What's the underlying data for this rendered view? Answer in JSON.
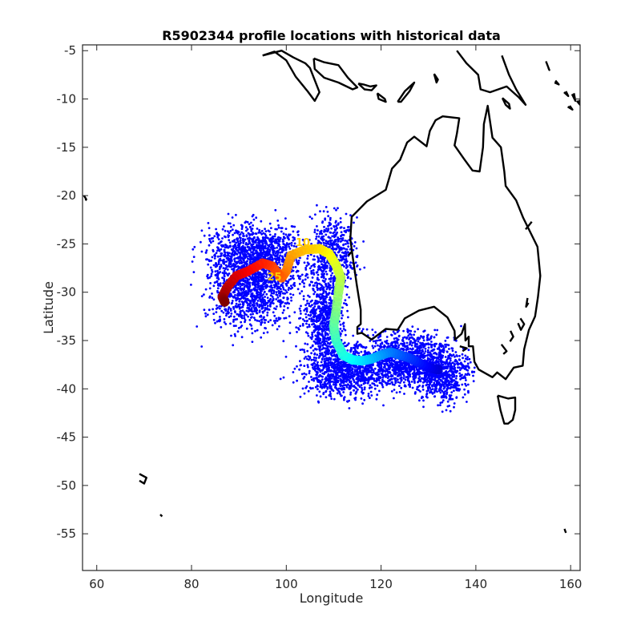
{
  "chart_data": {
    "type": "scatter",
    "title": "R5902344 profile locations with historical data",
    "xlabel": "Longitude",
    "ylabel": "Latitude",
    "xlim": [
      57,
      162
    ],
    "ylim": [
      -58.8,
      -4.4
    ],
    "xticks": [
      60,
      80,
      100,
      120,
      140,
      160
    ],
    "yticks": [
      -5,
      -10,
      -15,
      -20,
      -25,
      -30,
      -35,
      -40,
      -45,
      -50,
      -55
    ],
    "grid": false,
    "colormap": "jet",
    "colors": {
      "historical": "#0000ff",
      "coastline": "#000000",
      "axis": "#262626"
    },
    "historical_clusters": [
      {
        "lon": 94,
        "lat": -25.8,
        "spread_lon": 7.5,
        "spread_lat": 2.0,
        "n": 900
      },
      {
        "lon": 93,
        "lat": -29.5,
        "spread_lon": 6.5,
        "spread_lat": 3.0,
        "n": 1200
      },
      {
        "lon": 110,
        "lat": -26.0,
        "spread_lon": 3.5,
        "spread_lat": 2.5,
        "n": 500
      },
      {
        "lon": 108,
        "lat": -32.5,
        "spread_lon": 3.0,
        "spread_lat": 3.0,
        "n": 700
      },
      {
        "lon": 112,
        "lat": -38.0,
        "spread_lon": 6.0,
        "spread_lat": 2.0,
        "n": 1000
      },
      {
        "lon": 125,
        "lat": -37.0,
        "spread_lon": 6.0,
        "spread_lat": 2.0,
        "n": 1100
      },
      {
        "lon": 133,
        "lat": -38.5,
        "spread_lon": 4.0,
        "spread_lat": 2.0,
        "n": 600
      }
    ],
    "profile_track": [
      [
        132.0,
        -38.0
      ],
      [
        130.0,
        -37.8
      ],
      [
        128.0,
        -37.3
      ],
      [
        126.0,
        -36.8
      ],
      [
        124.0,
        -36.5
      ],
      [
        122.0,
        -36.2
      ],
      [
        120.0,
        -36.5
      ],
      [
        118.0,
        -36.9
      ],
      [
        116.0,
        -37.1
      ],
      [
        114.0,
        -37.0
      ],
      [
        112.0,
        -36.5
      ],
      [
        110.5,
        -35.0
      ],
      [
        110.0,
        -33.5
      ],
      [
        110.5,
        -32.0
      ],
      [
        111.0,
        -30.0
      ],
      [
        111.5,
        -28.5
      ],
      [
        110.5,
        -27.2
      ],
      [
        109.0,
        -26.0
      ],
      [
        107.0,
        -25.5
      ],
      [
        104.0,
        -25.6
      ],
      [
        101.0,
        -26.2
      ],
      [
        100.0,
        -27.8
      ],
      [
        99.0,
        -28.5
      ],
      [
        97.0,
        -27.3
      ],
      [
        95.0,
        -27.0
      ],
      [
        92.0,
        -27.8
      ],
      [
        89.5,
        -28.3
      ],
      [
        87.5,
        -29.5
      ],
      [
        86.5,
        -30.5
      ],
      [
        87.0,
        -31.0
      ]
    ],
    "track_labels": [
      {
        "text": "10",
        "lon": 103.5,
        "lat": -25.2
      },
      {
        "text": "25",
        "lon": 97.5,
        "lat": -28.8
      }
    ],
    "coastlines": [
      [
        [
          123.5,
          -33.9
        ],
        [
          121,
          -33.8
        ],
        [
          118,
          -34.9
        ],
        [
          115.9,
          -34.2
        ],
        [
          115,
          -34.3
        ],
        [
          115,
          -33.6
        ],
        [
          115.7,
          -33.3
        ],
        [
          115.7,
          -31.8
        ],
        [
          114.9,
          -29.3
        ],
        [
          114,
          -26.3
        ],
        [
          113.5,
          -24.5
        ],
        [
          113.8,
          -22.2
        ],
        [
          114.6,
          -21.8
        ],
        [
          117,
          -20.6
        ],
        [
          121,
          -19.4
        ],
        [
          122.3,
          -17.2
        ],
        [
          124,
          -16.3
        ],
        [
          125.5,
          -14.5
        ],
        [
          127,
          -13.9
        ],
        [
          129.6,
          -14.9
        ],
        [
          130.3,
          -13.3
        ],
        [
          131.5,
          -12.2
        ],
        [
          133,
          -11.8
        ],
        [
          136.5,
          -12
        ],
        [
          136,
          -13.6
        ],
        [
          135.5,
          -14.8
        ],
        [
          137.5,
          -16.2
        ],
        [
          139.3,
          -17.4
        ],
        [
          140.8,
          -17.5
        ],
        [
          141.5,
          -15
        ],
        [
          141.7,
          -12.6
        ],
        [
          142.5,
          -10.7
        ],
        [
          143.5,
          -14
        ],
        [
          145.3,
          -15
        ],
        [
          146,
          -17.5
        ],
        [
          146.3,
          -19
        ],
        [
          148.5,
          -20.5
        ],
        [
          150,
          -22.3
        ],
        [
          153,
          -25.3
        ],
        [
          153.6,
          -28.3
        ],
        [
          153.1,
          -30.5
        ],
        [
          152.5,
          -32.5
        ],
        [
          151.2,
          -33.9
        ],
        [
          150.2,
          -35.9
        ],
        [
          149.9,
          -37.6
        ],
        [
          148,
          -37.8
        ],
        [
          146.3,
          -39
        ],
        [
          144.5,
          -38.3
        ],
        [
          143.5,
          -38.8
        ],
        [
          140.6,
          -38
        ],
        [
          139.7,
          -37.2
        ],
        [
          139.4,
          -35.6
        ],
        [
          138.5,
          -35.6
        ],
        [
          138.5,
          -34.6
        ],
        [
          137.8,
          -35
        ],
        [
          137.7,
          -33.3
        ],
        [
          137,
          -34.3
        ],
        [
          135.6,
          -34.9
        ],
        [
          135.5,
          -34
        ],
        [
          134,
          -32.6
        ],
        [
          131.2,
          -31.5
        ],
        [
          128,
          -31.9
        ],
        [
          125,
          -32.7
        ],
        [
          123.5,
          -33.9
        ]
      ],
      [
        [
          144.6,
          -40.7
        ],
        [
          146.8,
          -41
        ],
        [
          148.3,
          -40.9
        ],
        [
          148.3,
          -42.2
        ],
        [
          147.8,
          -43.2
        ],
        [
          146.8,
          -43.6
        ],
        [
          146,
          -43.6
        ],
        [
          145.2,
          -42.2
        ],
        [
          144.6,
          -40.7
        ]
      ],
      [
        [
          95,
          -5.5
        ],
        [
          97.5,
          -5.1
        ],
        [
          100,
          -6
        ],
        [
          102,
          -7.7
        ],
        [
          104.5,
          -9.2
        ],
        [
          106,
          -10.2
        ],
        [
          107,
          -9.3
        ],
        [
          105,
          -6.8
        ],
        [
          104,
          -6.3
        ],
        [
          101.5,
          -5.7
        ],
        [
          99,
          -5
        ],
        [
          95,
          -5.5
        ]
      ],
      [
        [
          105.8,
          -5.8
        ],
        [
          108,
          -6.2
        ],
        [
          111,
          -6.5
        ],
        [
          113,
          -7.8
        ],
        [
          115,
          -8.8
        ],
        [
          114,
          -9
        ],
        [
          111,
          -8.3
        ],
        [
          108,
          -7.8
        ],
        [
          106,
          -6.9
        ],
        [
          105.8,
          -5.8
        ]
      ],
      [
        [
          115.2,
          -8.4
        ],
        [
          116.3,
          -8.5
        ],
        [
          117.7,
          -8.7
        ],
        [
          119,
          -8.6
        ],
        [
          118,
          -9.1
        ],
        [
          116.5,
          -9
        ],
        [
          115.2,
          -8.4
        ]
      ],
      [
        [
          119.2,
          -9.4
        ],
        [
          120.8,
          -10
        ],
        [
          121,
          -10.3
        ],
        [
          119.5,
          -10
        ],
        [
          119.2,
          -9.4
        ]
      ],
      [
        [
          123.5,
          -10.3
        ],
        [
          125,
          -9.2
        ],
        [
          127,
          -8.3
        ],
        [
          126,
          -9.2
        ],
        [
          124.2,
          -10.3
        ],
        [
          123.5,
          -10.3
        ]
      ],
      [
        [
          131.2,
          -7.4
        ],
        [
          132,
          -8
        ],
        [
          131.7,
          -8.3
        ],
        [
          131.2,
          -7.4
        ]
      ],
      [
        [
          136,
          -5
        ],
        [
          138,
          -6.3
        ],
        [
          140.5,
          -7.5
        ],
        [
          141,
          -9
        ],
        [
          143,
          -9.3
        ],
        [
          146.5,
          -8.7
        ],
        [
          149,
          -9.8
        ],
        [
          150.5,
          -10.6
        ],
        [
          148.5,
          -9
        ],
        [
          147,
          -7.5
        ],
        [
          145.5,
          -5.5
        ]
      ],
      [
        [
          145.6,
          -9.9
        ],
        [
          147,
          -10.5
        ],
        [
          147.2,
          -11
        ],
        [
          146.3,
          -10.6
        ],
        [
          145.6,
          -9.9
        ]
      ],
      [
        [
          154.8,
          -6.1
        ],
        [
          155.5,
          -7
        ],
        [
          155.3,
          -6.8
        ]
      ],
      [
        [
          156.6,
          -8.3
        ],
        [
          157.5,
          -8.5
        ],
        [
          156.8,
          -8.1
        ]
      ],
      [
        [
          158.6,
          -9.3
        ],
        [
          159.5,
          -9.7
        ],
        [
          159,
          -9.2
        ]
      ],
      [
        [
          160.3,
          -9.5
        ],
        [
          161,
          -10.2
        ],
        [
          160.7,
          -9.4
        ]
      ],
      [
        [
          159.4,
          -10.8
        ],
        [
          160.4,
          -11.1
        ],
        [
          159.8,
          -10.7
        ]
      ],
      [
        [
          161.3,
          -10.2
        ],
        [
          162,
          -10.6
        ],
        [
          161.8,
          -10.1
        ]
      ],
      [
        [
          113.1,
          -26.2
        ],
        [
          113.8,
          -25.8
        ]
      ],
      [
        [
          150.5,
          -23.5
        ],
        [
          151.8,
          -22.7
        ]
      ],
      [
        [
          150.9,
          -30.6
        ],
        [
          150.6,
          -31.5
        ],
        [
          151.1,
          -31.1
        ]
      ],
      [
        [
          149.4,
          -32.7
        ],
        [
          150.2,
          -33.3
        ],
        [
          149.5,
          -33.9
        ],
        [
          148.9,
          -33.2
        ]
      ],
      [
        [
          147.3,
          -34
        ],
        [
          147.9,
          -34.6
        ],
        [
          147.2,
          -35.1
        ]
      ],
      [
        [
          145.4,
          -35.4
        ],
        [
          146.5,
          -36.1
        ],
        [
          145.8,
          -36.4
        ]
      ],
      [
        [
          136.6,
          -35.6
        ],
        [
          138.1,
          -35.8
        ],
        [
          137.2,
          -36.1
        ]
      ],
      [
        [
          57.3,
          -20
        ],
        [
          57.8,
          -20.4
        ],
        [
          57.6,
          -20.5
        ]
      ],
      [
        [
          69,
          -48.8
        ],
        [
          70.5,
          -49.2
        ],
        [
          70,
          -49.8
        ],
        [
          69,
          -49.5
        ]
      ],
      [
        [
          73.4,
          -53
        ],
        [
          73.8,
          -53.2
        ]
      ],
      [
        [
          158.7,
          -54.5
        ],
        [
          159,
          -54.9
        ]
      ]
    ]
  }
}
